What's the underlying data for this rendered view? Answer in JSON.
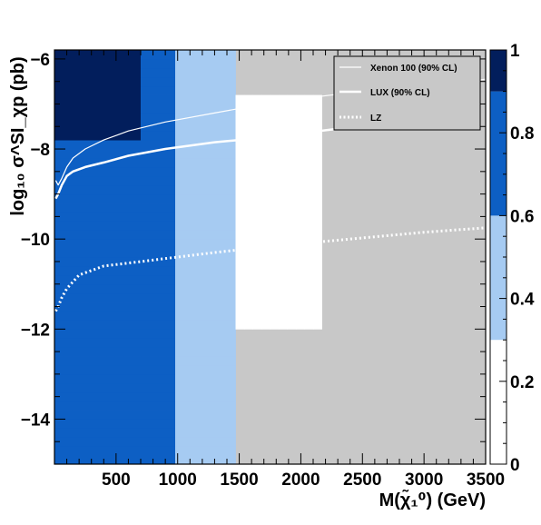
{
  "chart_data": {
    "type": "heatmap",
    "title": "",
    "xlabel": "M(χ̃₁⁰) (GeV)",
    "ylabel": "log₁₀ σ^SI_χp (pb)",
    "xlim": [
      0,
      3500
    ],
    "ylim": [
      -15,
      -5.8
    ],
    "x_tick_labels": [
      "500",
      "1000",
      "1500",
      "2000",
      "2500",
      "3000",
      "3500"
    ],
    "y_tick_labels": [
      "−6",
      "−8",
      "−10",
      "−12",
      "−14"
    ],
    "background_color": "#c8c8c8",
    "colorbar": {
      "range": [
        0,
        1
      ],
      "tick_labels": [
        "0",
        "0.2",
        "0.4",
        "0.6",
        "0.8",
        "1"
      ],
      "bands": [
        {
          "from": 0.0,
          "to": 0.3,
          "color": "#ffffff"
        },
        {
          "from": 0.3,
          "to": 0.6,
          "color": "#a6cbf2"
        },
        {
          "from": 0.6,
          "to": 0.9,
          "color": "#0d5fc4"
        },
        {
          "from": 0.9,
          "to": 1.0,
          "color": "#021e5c"
        }
      ]
    },
    "cell_size": {
      "x_gev": 70,
      "y_log": 0.2
    },
    "density_regions": [
      {
        "x_range": [
          0,
          950
        ],
        "y_range": [
          -15,
          -5.8
        ],
        "value": 0.75
      },
      {
        "x_range": [
          0,
          700
        ],
        "y_range": [
          -7.8,
          -5.8
        ],
        "value": 0.95
      },
      {
        "x_range": [
          950,
          1450
        ],
        "y_range": [
          -15,
          -5.8
        ],
        "value": 0.45
      },
      {
        "x_range": [
          1450,
          2150
        ],
        "y_range": [
          -12.0,
          -6.8
        ],
        "value": 0.15
      }
    ],
    "series": [
      {
        "name": "Xenon 100 (90% CL)",
        "style": "thin-solid",
        "color": "#ffffff",
        "x": [
          10,
          30,
          60,
          100,
          150,
          250,
          400,
          600,
          900,
          1300,
          1800,
          2400,
          3000,
          3500
        ],
        "y": [
          -8.7,
          -8.8,
          -8.65,
          -8.4,
          -8.2,
          -8.0,
          -7.8,
          -7.6,
          -7.4,
          -7.2,
          -6.95,
          -6.75,
          -6.6,
          -6.45
        ]
      },
      {
        "name": "LUX (90% CL)",
        "style": "thick-solid",
        "color": "#ffffff",
        "x": [
          10,
          30,
          60,
          100,
          150,
          250,
          400,
          600,
          900,
          1300,
          1700,
          2000,
          2300
        ],
        "y": [
          -9.1,
          -9.0,
          -8.8,
          -8.6,
          -8.5,
          -8.4,
          -8.3,
          -8.15,
          -8.0,
          -7.85,
          -7.75,
          -7.65,
          -7.55
        ]
      },
      {
        "name": "LZ",
        "style": "dotted",
        "color": "#ffffff",
        "x": [
          10,
          30,
          60,
          100,
          200,
          400,
          700,
          1000,
          1300,
          1800,
          2400,
          3000,
          3500
        ],
        "y": [
          -11.6,
          -11.5,
          -11.3,
          -11.1,
          -10.8,
          -10.6,
          -10.5,
          -10.4,
          -10.3,
          -10.15,
          -10.0,
          -9.85,
          -9.75
        ]
      }
    ],
    "legend_position": "top-right"
  }
}
